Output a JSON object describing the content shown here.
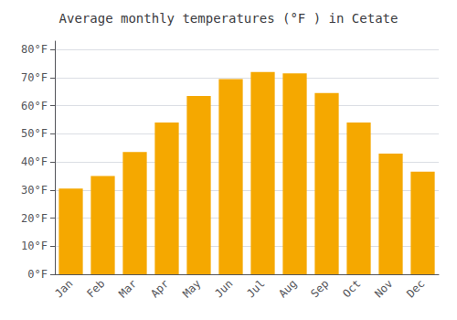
{
  "chart_data": {
    "type": "bar",
    "title": "Average monthly temperatures (°F ) in Cetate",
    "categories": [
      "Jan",
      "Feb",
      "Mar",
      "Apr",
      "May",
      "Jun",
      "Jul",
      "Aug",
      "Sep",
      "Oct",
      "Nov",
      "Dec"
    ],
    "values": [
      30.5,
      35.0,
      43.5,
      54.0,
      63.5,
      69.5,
      72.0,
      71.5,
      64.5,
      54.0,
      43.0,
      36.5
    ],
    "color": "#F5A800",
    "ylim": [
      0,
      83
    ],
    "yticks": [
      {
        "value": 0,
        "label": "0°F"
      },
      {
        "value": 10,
        "label": "10°F"
      },
      {
        "value": 20,
        "label": "20°F"
      },
      {
        "value": 30,
        "label": "30°F"
      },
      {
        "value": 40,
        "label": "40°F"
      },
      {
        "value": 50,
        "label": "50°F"
      },
      {
        "value": 60,
        "label": "60°F"
      },
      {
        "value": 70,
        "label": "70°F"
      },
      {
        "value": 80,
        "label": "80°F"
      }
    ],
    "grid": true
  }
}
